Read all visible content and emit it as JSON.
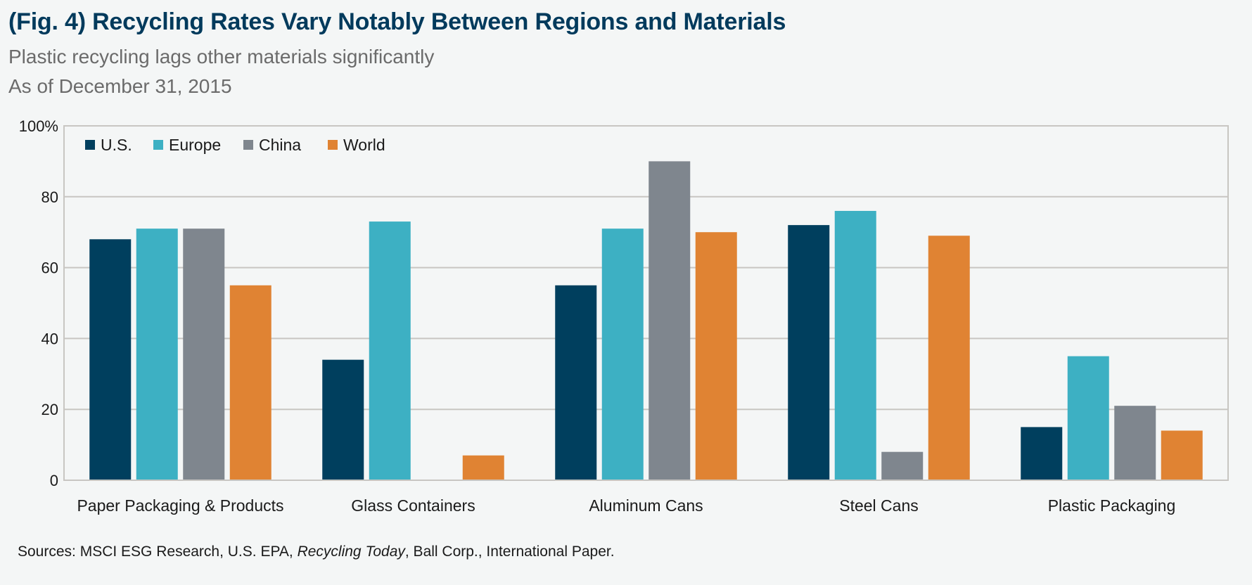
{
  "header": {
    "title": "(Fig. 4) Recycling Rates Vary Notably Between Regions and Materials",
    "subtitle": "Plastic recycling lags other materials significantly",
    "date": "As of December 31, 2015"
  },
  "footer": {
    "sources_prefix": "Sources: MSCI ESG Research, U.S. EPA, ",
    "sources_italic": "Recycling Today",
    "sources_suffix": ", Ball Corp., International Paper."
  },
  "chart_data": {
    "type": "bar",
    "title": "(Fig. 4) Recycling Rates Vary Notably Between Regions and Materials",
    "subtitle": "Plastic recycling lags other materials significantly",
    "xlabel": "",
    "ylabel": "",
    "ylim": [
      0,
      100
    ],
    "yticks": [
      0,
      20,
      40,
      60,
      80,
      100
    ],
    "ytick_labels": [
      "0",
      "20",
      "40",
      "60",
      "80",
      "100%"
    ],
    "grid": true,
    "legend_position": "top-left",
    "categories": [
      "Paper Packaging & Products",
      "Glass Containers",
      "Aluminum Cans",
      "Steel Cans",
      "Plastic Packaging"
    ],
    "series": [
      {
        "name": "U.S.",
        "color": "#003f5e",
        "values": [
          68,
          34,
          55,
          72,
          15
        ]
      },
      {
        "name": "Europe",
        "color": "#3db0c3",
        "values": [
          71,
          73,
          71,
          76,
          35
        ]
      },
      {
        "name": "China",
        "color": "#7f868e",
        "values": [
          71,
          null,
          90,
          8,
          21
        ]
      },
      {
        "name": "World",
        "color": "#e08333",
        "values": [
          55,
          7,
          70,
          69,
          14
        ]
      }
    ]
  }
}
